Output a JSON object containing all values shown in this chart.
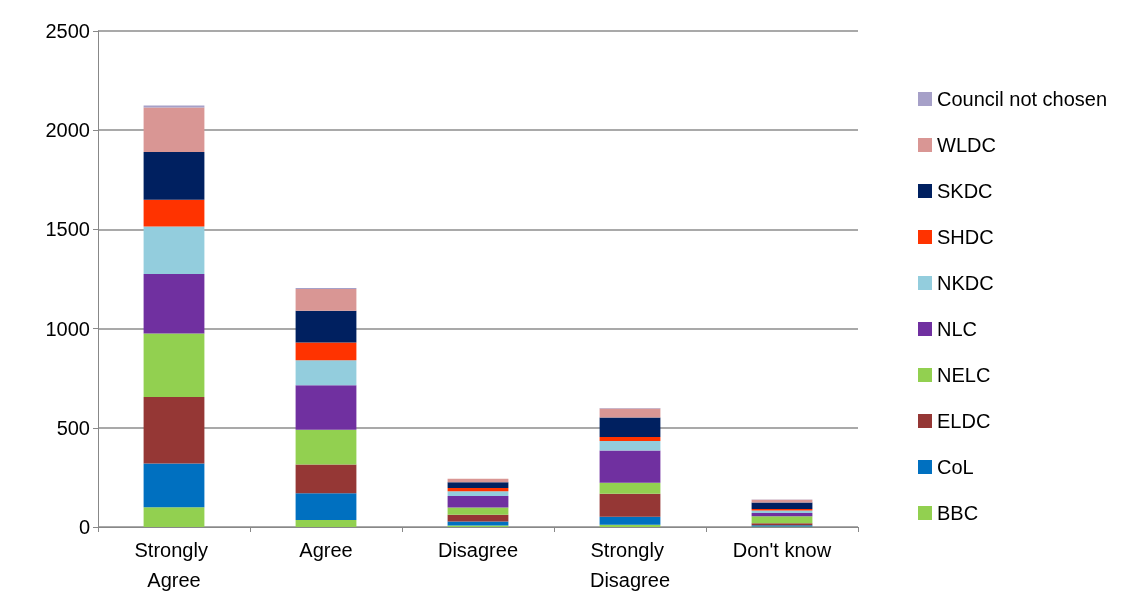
{
  "chart_data": {
    "type": "bar",
    "stacked": true,
    "categories": [
      "Strongly Agree",
      "Agree",
      "Disagree",
      "Strongly Disagree",
      "Don't know"
    ],
    "series": [
      {
        "name": "BBC",
        "color": "#92d050",
        "values": [
          100,
          35,
          7,
          11,
          3
        ]
      },
      {
        "name": "CoL",
        "color": "#0070c0",
        "values": [
          220,
          135,
          21,
          41,
          6
        ]
      },
      {
        "name": "ELDC",
        "color": "#953735",
        "values": [
          335,
          145,
          34,
          115,
          10
        ]
      },
      {
        "name": "NELC",
        "color": "#92d050",
        "values": [
          320,
          175,
          36,
          56,
          35
        ]
      },
      {
        "name": "NLC",
        "color": "#7030a0",
        "values": [
          300,
          225,
          58,
          162,
          16
        ]
      },
      {
        "name": "NKDC",
        "color": "#93cddd",
        "values": [
          240,
          125,
          24,
          48,
          13
        ]
      },
      {
        "name": "SHDC",
        "color": "#ff3300",
        "values": [
          135,
          90,
          17,
          20,
          8
        ]
      },
      {
        "name": "SKDC",
        "color": "#002060",
        "values": [
          240,
          160,
          29,
          99,
          33
        ]
      },
      {
        "name": "WLDC",
        "color": "#d99694",
        "values": [
          225,
          110,
          17,
          45,
          13
        ]
      },
      {
        "name": "Council not chosen",
        "color": "#a6a0c8",
        "values": [
          10,
          5,
          null,
          3,
          2
        ]
      }
    ],
    "ylim": [
      0,
      2500
    ],
    "yticks": [
      0,
      500,
      1000,
      1500,
      2000,
      2500
    ],
    "grid": "y",
    "legend": "right"
  }
}
